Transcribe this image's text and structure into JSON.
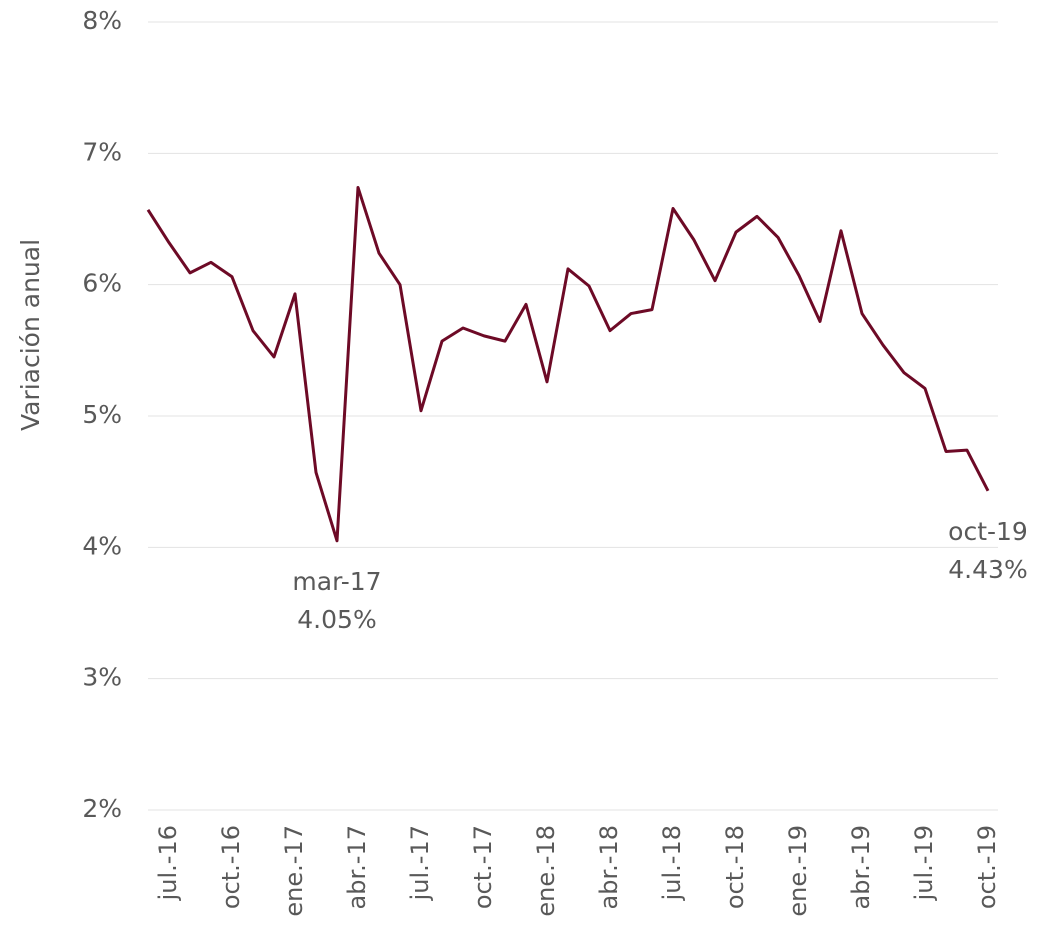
{
  "chart_data": {
    "type": "line",
    "ylabel": "Variación anual",
    "categories": [
      null,
      "jul.-16",
      null,
      null,
      "oct.-16",
      null,
      null,
      "ene.-17",
      null,
      null,
      "abr.-17",
      null,
      null,
      "jul.-17",
      null,
      null,
      "oct.-17",
      null,
      null,
      "ene.-18",
      null,
      null,
      "abr.-18",
      null,
      null,
      "jul.-18",
      null,
      null,
      "oct.-18",
      null,
      null,
      "ene.-19",
      null,
      null,
      "abr.-19",
      null,
      null,
      "jul.-19",
      null,
      null,
      "oct.-19"
    ],
    "series": [
      {
        "name": "Variación anual",
        "color": "#6d0a26",
        "values": [
          6.57,
          6.32,
          6.09,
          6.17,
          6.06,
          5.65,
          5.45,
          5.93,
          4.57,
          4.05,
          6.74,
          6.24,
          6.0,
          5.04,
          5.57,
          5.67,
          5.61,
          5.57,
          5.85,
          5.26,
          6.12,
          5.99,
          5.65,
          5.78,
          5.81,
          6.58,
          6.34,
          6.03,
          6.4,
          6.52,
          6.36,
          6.07,
          5.72,
          6.41,
          5.78,
          5.54,
          5.33,
          5.21,
          4.73,
          4.74,
          4.43
        ],
        "point_labels": [
          null,
          null,
          null,
          null,
          null,
          null,
          null,
          null,
          null,
          "mar-17",
          null,
          null,
          null,
          null,
          null,
          null,
          null,
          null,
          null,
          null,
          null,
          null,
          null,
          null,
          null,
          null,
          null,
          null,
          null,
          null,
          null,
          null,
          null,
          null,
          null,
          null,
          null,
          null,
          null,
          null,
          "oct-19"
        ],
        "value_labels": [
          null,
          null,
          null,
          null,
          null,
          null,
          null,
          null,
          null,
          "4.05%",
          null,
          null,
          null,
          null,
          null,
          null,
          null,
          null,
          null,
          null,
          null,
          null,
          null,
          null,
          null,
          null,
          null,
          null,
          null,
          null,
          null,
          null,
          null,
          null,
          null,
          null,
          null,
          null,
          null,
          null,
          "4.43%"
        ]
      }
    ],
    "ylim": [
      2,
      8
    ],
    "yticks": [
      {
        "value": 2,
        "label": "2%"
      },
      {
        "value": 3,
        "label": "3%"
      },
      {
        "value": 4,
        "label": "4%"
      },
      {
        "value": 5,
        "label": "5%"
      },
      {
        "value": 6,
        "label": "6%"
      },
      {
        "value": 7,
        "label": "7%"
      },
      {
        "value": 8,
        "label": "8%"
      }
    ],
    "grid": true
  }
}
